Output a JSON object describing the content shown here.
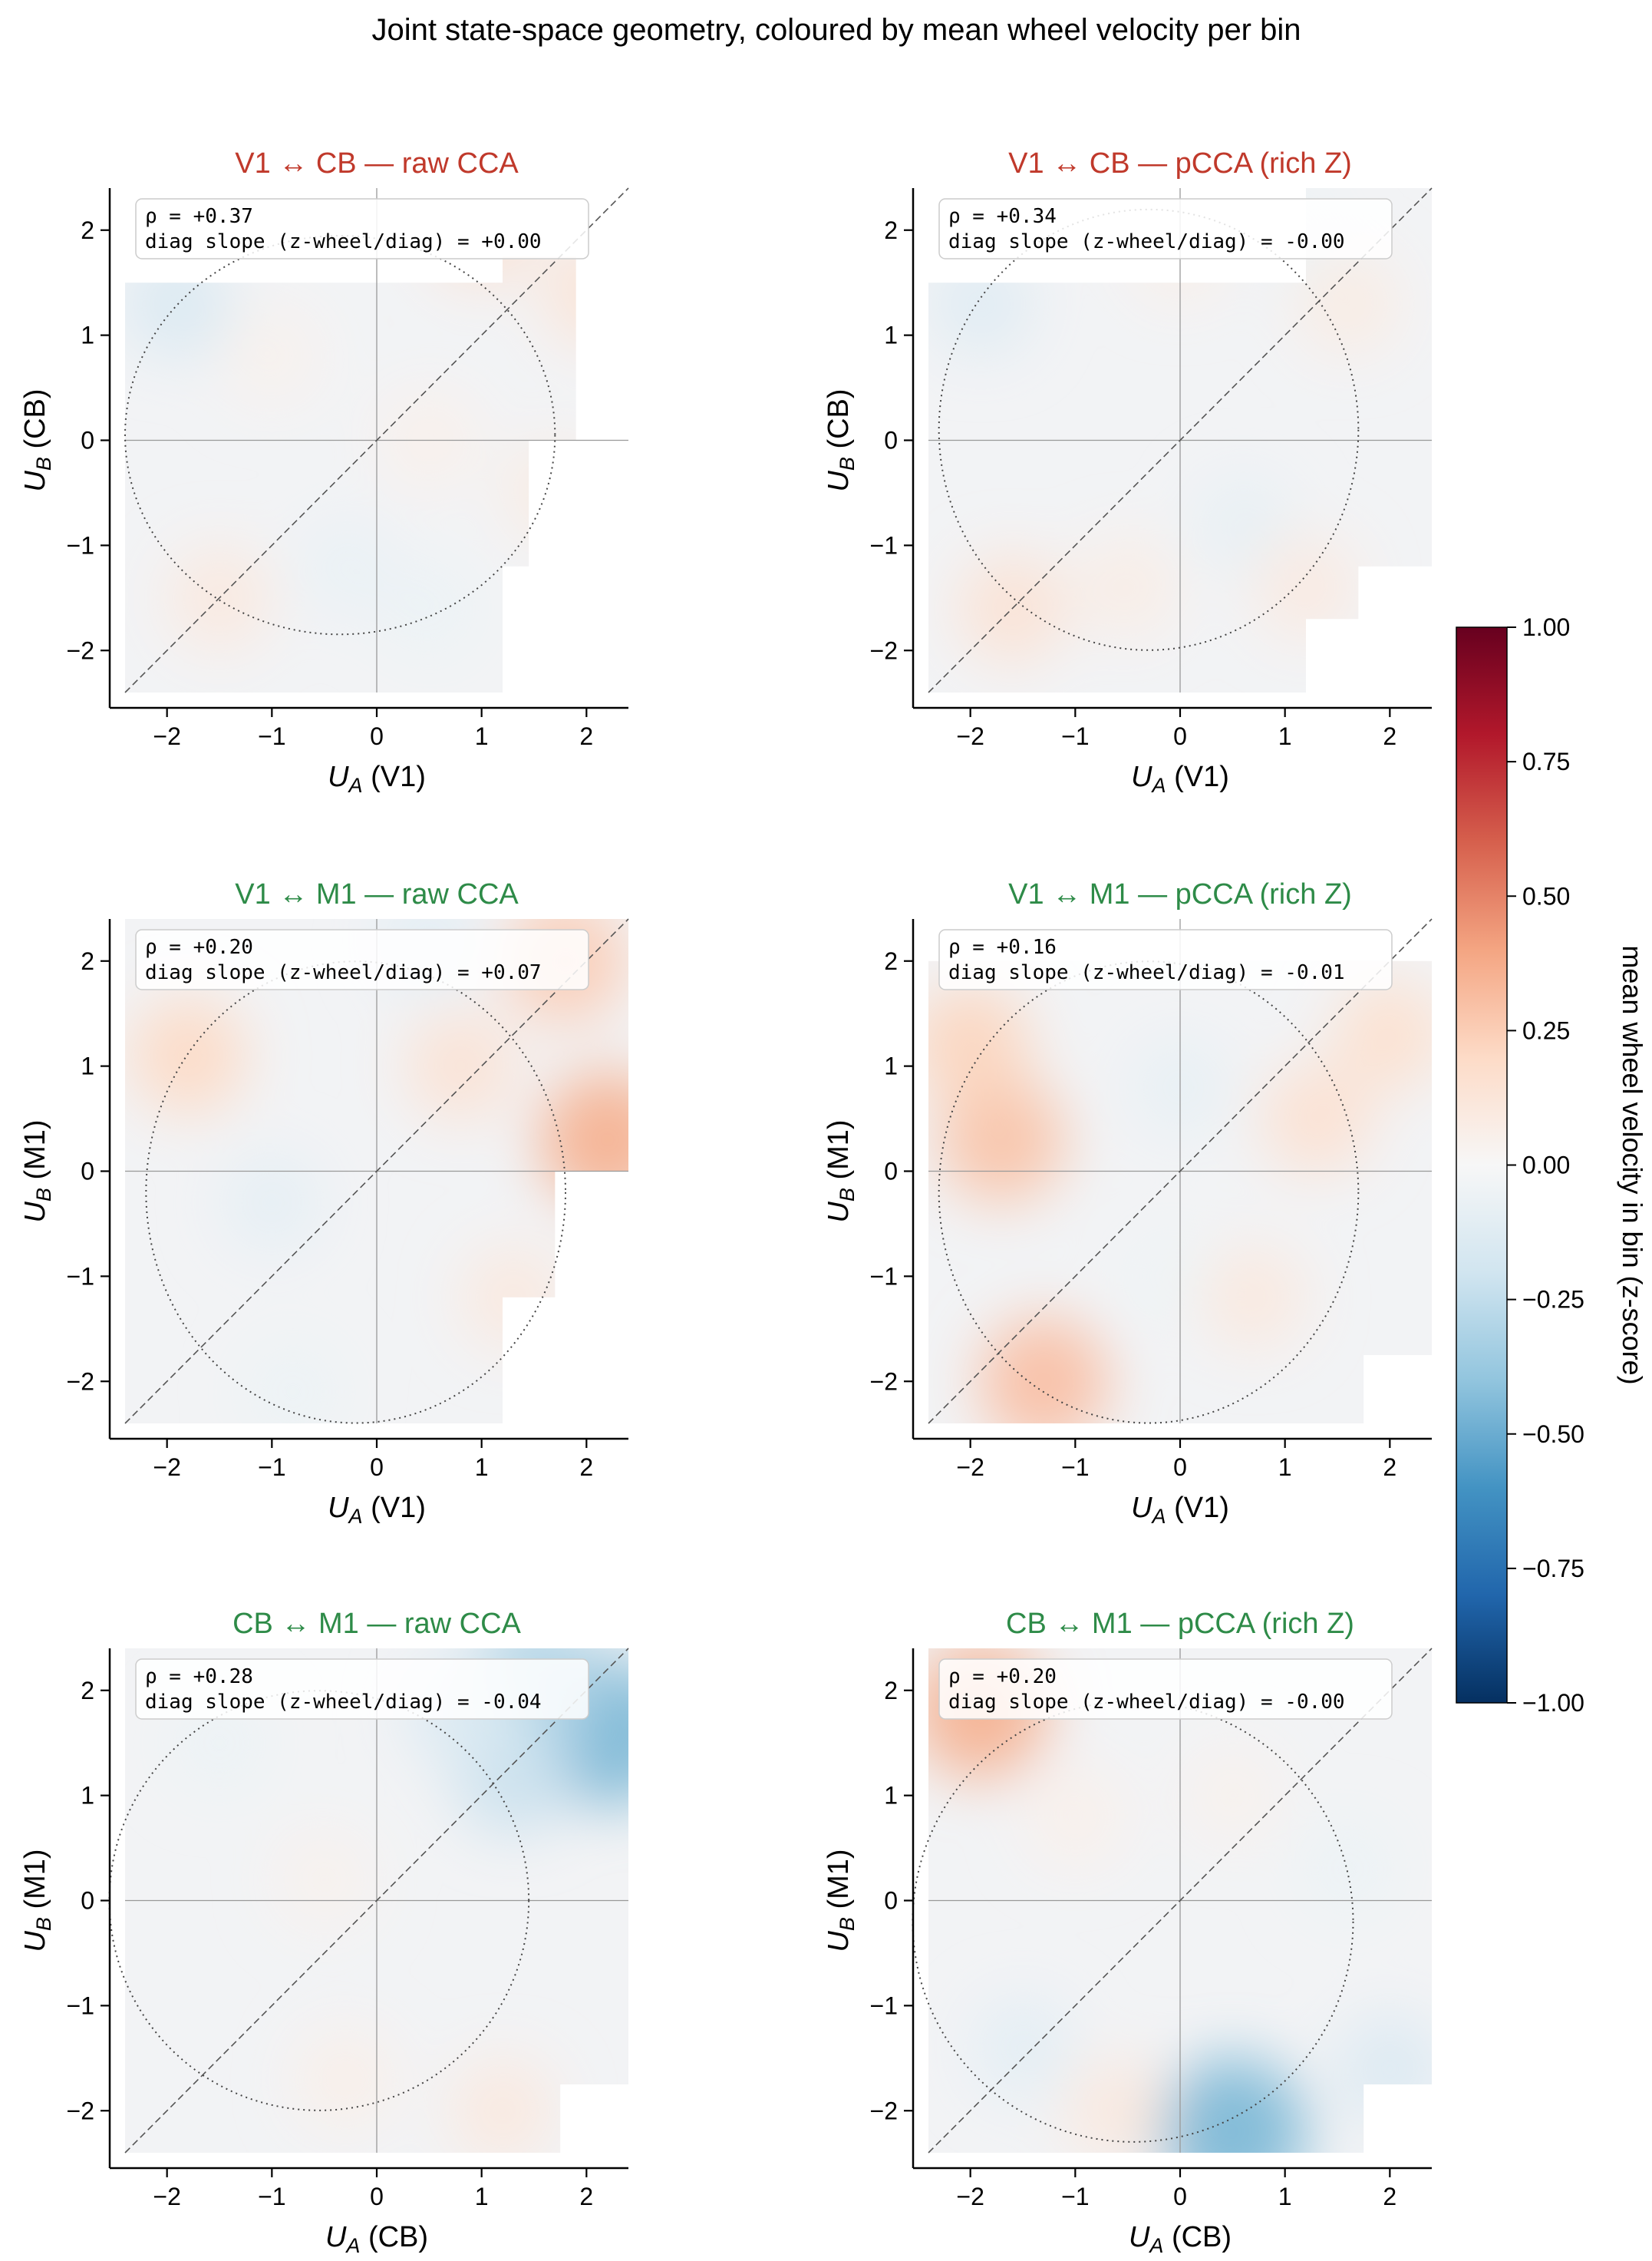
{
  "figure": {
    "title": "Joint state-space geometry, coloured by mean wheel velocity per bin"
  },
  "colorbar": {
    "label": "mean wheel velocity in bin  (z-score)",
    "ticks": [
      "1.00",
      "0.75",
      "0.50",
      "0.25",
      "0.00",
      "−0.25",
      "−0.50",
      "−0.75",
      "−1.00"
    ],
    "tick_values": [
      1.0,
      0.75,
      0.5,
      0.25,
      0.0,
      -0.25,
      -0.5,
      -0.75,
      -1.0
    ],
    "range": [
      -1.0,
      1.0
    ],
    "colormap": "RdBu_r",
    "colors": [
      "#053061",
      "#2166ac",
      "#4393c3",
      "#92c5de",
      "#d1e5f0",
      "#f7f7f7",
      "#fddbc7",
      "#f4a582",
      "#d6604d",
      "#b2182b",
      "#67001f"
    ]
  },
  "chart_data": [
    {
      "type": "heatmap",
      "title": "V1 ↔ CB — raw CCA",
      "title_color": "#c0392b",
      "xlabel": "U_A  (V1)",
      "xlabel_main": "U",
      "xlabel_sub": "A",
      "xlabel_rest": "  (V1)",
      "ylabel": "U_B  (CB)",
      "ylabel_main": "U",
      "ylabel_sub": "B",
      "ylabel_rest": "  (CB)",
      "xlim": [
        -2.4,
        2.4
      ],
      "ylim": [
        -2.4,
        2.4
      ],
      "xticks": [
        -2,
        -1,
        0,
        1,
        2
      ],
      "yticks": [
        -2,
        -1,
        0,
        1,
        2
      ],
      "xtick_labels": [
        "−2",
        "−1",
        "0",
        "1",
        "2"
      ],
      "ytick_labels": [
        "−2",
        "−1",
        "0",
        "1",
        "2"
      ],
      "annotation_line1": "ρ = +0.37",
      "annotation_line2": "diag slope (z-wheel/diag) = +0.00",
      "rho": 0.37,
      "diag_slope": 0.0,
      "ellipse": {
        "cx": -0.35,
        "cy": 0.05,
        "rx": 2.05,
        "ry": 1.9
      },
      "coverage": [
        [
          -2.4,
          -2.4,
          1.2,
          1.5
        ],
        [
          1.2,
          -1.5,
          1.2,
          0.3
        ],
        [
          1.2,
          -1.2,
          1.45,
          1.2
        ],
        [
          1.2,
          0.0,
          2.4,
          0.0
        ],
        [
          1.2,
          0.0,
          1.9,
          1.75
        ]
      ],
      "cells": [
        {
          "x": -1.9,
          "y": 1.3,
          "v": -0.15
        },
        {
          "x": 1.0,
          "y": 2.0,
          "v": 0.14
        },
        {
          "x": 2.1,
          "y": 1.4,
          "v": 0.13
        },
        {
          "x": -1.5,
          "y": -1.5,
          "v": 0.1
        },
        {
          "x": -0.3,
          "y": -1.2,
          "v": -0.07
        },
        {
          "x": 0.5,
          "y": -1.6,
          "v": -0.06
        },
        {
          "x": 0.5,
          "y": 0.0,
          "v": 0.05
        },
        {
          "x": 1.7,
          "y": -0.5,
          "v": 0.08
        },
        {
          "x": -1.0,
          "y": 0.8,
          "v": 0.04
        }
      ]
    },
    {
      "type": "heatmap",
      "title": "V1 ↔ CB — pCCA (rich Z)",
      "title_color": "#c0392b",
      "xlabel": "U_A  (V1)",
      "xlabel_main": "U",
      "xlabel_sub": "A",
      "xlabel_rest": "  (V1)",
      "ylabel": "U_B  (CB)",
      "ylabel_main": "U",
      "ylabel_sub": "B",
      "ylabel_rest": "  (CB)",
      "xlim": [
        -2.4,
        2.4
      ],
      "ylim": [
        -2.4,
        2.4
      ],
      "xticks": [
        -2,
        -1,
        0,
        1,
        2
      ],
      "yticks": [
        -2,
        -1,
        0,
        1,
        2
      ],
      "xtick_labels": [
        "−2",
        "−1",
        "0",
        "1",
        "2"
      ],
      "ytick_labels": [
        "−2",
        "−1",
        "0",
        "1",
        "2"
      ],
      "annotation_line1": "ρ = +0.34",
      "annotation_line2": "diag slope (z-wheel/diag) = -0.00",
      "rho": 0.34,
      "diag_slope": 0.0,
      "ellipse": {
        "cx": -0.3,
        "cy": 0.1,
        "rx": 2.0,
        "ry": 2.1
      },
      "coverage": [
        [
          -2.4,
          -2.4,
          1.2,
          1.5
        ],
        [
          1.2,
          -1.7,
          1.7,
          1.2
        ],
        [
          1.2,
          -1.2,
          2.4,
          0.0
        ],
        [
          1.2,
          0.0,
          2.4,
          2.4
        ]
      ],
      "cells": [
        {
          "x": -1.9,
          "y": 1.3,
          "v": -0.12
        },
        {
          "x": -1.6,
          "y": -1.6,
          "v": 0.14
        },
        {
          "x": 0.0,
          "y": 1.8,
          "v": 0.06
        },
        {
          "x": 1.0,
          "y": 2.0,
          "v": -0.06
        },
        {
          "x": 1.6,
          "y": 1.3,
          "v": 0.08
        },
        {
          "x": 0.6,
          "y": -0.8,
          "v": -0.08
        },
        {
          "x": -0.5,
          "y": -1.4,
          "v": 0.07
        },
        {
          "x": 1.2,
          "y": -1.4,
          "v": 0.09
        }
      ]
    },
    {
      "type": "heatmap",
      "title": "V1 ↔ M1 — raw CCA",
      "title_color": "#2e8b48",
      "xlabel": "U_A  (V1)",
      "xlabel_main": "U",
      "xlabel_sub": "A",
      "xlabel_rest": "  (V1)",
      "ylabel": "U_B  (M1)",
      "ylabel_main": "U",
      "ylabel_sub": "B",
      "ylabel_rest": "  (M1)",
      "xlim": [
        -2.4,
        2.4
      ],
      "ylim": [
        -2.4,
        2.4
      ],
      "xticks": [
        -2,
        -1,
        0,
        1,
        2
      ],
      "yticks": [
        -2,
        -1,
        0,
        1,
        2
      ],
      "xtick_labels": [
        "−2",
        "−1",
        "0",
        "1",
        "2"
      ],
      "ytick_labels": [
        "−2",
        "−1",
        "0",
        "1",
        "2"
      ],
      "annotation_line1": "ρ = +0.20",
      "annotation_line2": "diag slope (z-wheel/diag) = +0.07",
      "rho": 0.2,
      "diag_slope": 0.07,
      "ellipse": {
        "cx": -0.2,
        "cy": -0.2,
        "rx": 2.0,
        "ry": 2.2
      },
      "coverage": [
        [
          -2.4,
          -2.4,
          1.2,
          1.2
        ],
        [
          -2.4,
          -1.2,
          1.7,
          2.4
        ],
        [
          -2.4,
          0.0,
          2.4,
          2.4
        ]
      ],
      "cells": [
        {
          "x": 2.2,
          "y": 0.3,
          "v": 0.35
        },
        {
          "x": 1.8,
          "y": 2.0,
          "v": 0.25
        },
        {
          "x": 0.8,
          "y": 1.0,
          "v": 0.14
        },
        {
          "x": -1.8,
          "y": 1.1,
          "v": 0.2
        },
        {
          "x": -1.0,
          "y": -0.3,
          "v": -0.09
        },
        {
          "x": 0.5,
          "y": 2.2,
          "v": -0.1
        },
        {
          "x": -0.8,
          "y": -2.1,
          "v": -0.06
        },
        {
          "x": 1.3,
          "y": -1.2,
          "v": 0.1
        }
      ]
    },
    {
      "type": "heatmap",
      "title": "V1 ↔ M1 — pCCA (rich Z)",
      "title_color": "#2e8b48",
      "xlabel": "U_A  (V1)",
      "xlabel_main": "U",
      "xlabel_sub": "A",
      "xlabel_rest": "  (V1)",
      "ylabel": "U_B  (M1)",
      "ylabel_main": "U",
      "ylabel_sub": "B",
      "ylabel_rest": "  (M1)",
      "xlim": [
        -2.4,
        2.4
      ],
      "ylim": [
        -2.4,
        2.4
      ],
      "xticks": [
        -2,
        -1,
        0,
        1,
        2
      ],
      "yticks": [
        -2,
        -1,
        0,
        1,
        2
      ],
      "xtick_labels": [
        "−2",
        "−1",
        "0",
        "1",
        "2"
      ],
      "ytick_labels": [
        "−2",
        "−1",
        "0",
        "1",
        "2"
      ],
      "annotation_line1": "ρ = +0.16",
      "annotation_line2": "diag slope (z-wheel/diag) = -0.01",
      "rho": 0.16,
      "diag_slope": -0.01,
      "ellipse": {
        "cx": -0.3,
        "cy": -0.2,
        "rx": 2.0,
        "ry": 2.2
      },
      "coverage": [
        [
          -2.4,
          -2.4,
          1.75,
          1.75
        ],
        [
          -2.4,
          -1.75,
          2.4,
          2.0
        ]
      ],
      "cells": [
        {
          "x": -1.7,
          "y": 0.3,
          "v": 0.28
        },
        {
          "x": -1.3,
          "y": -2.0,
          "v": 0.3
        },
        {
          "x": -2.0,
          "y": 1.2,
          "v": 0.22
        },
        {
          "x": 1.3,
          "y": 0.5,
          "v": 0.15
        },
        {
          "x": 2.0,
          "y": 1.3,
          "v": 0.16
        },
        {
          "x": 0.0,
          "y": 0.8,
          "v": -0.08
        },
        {
          "x": -0.1,
          "y": -1.0,
          "v": -0.05
        },
        {
          "x": 0.7,
          "y": -1.2,
          "v": 0.1
        }
      ]
    },
    {
      "type": "heatmap",
      "title": "CB ↔ M1 — raw CCA",
      "title_color": "#2e8b48",
      "xlabel": "U_A  (CB)",
      "xlabel_main": "U",
      "xlabel_sub": "A",
      "xlabel_rest": "  (CB)",
      "ylabel": "U_B  (M1)",
      "ylabel_main": "U",
      "ylabel_sub": "B",
      "ylabel_rest": "  (M1)",
      "xlim": [
        -2.4,
        2.4
      ],
      "ylim": [
        -2.4,
        2.4
      ],
      "xticks": [
        -2,
        -1,
        0,
        1,
        2
      ],
      "yticks": [
        -2,
        -1,
        0,
        1,
        2
      ],
      "xtick_labels": [
        "−2",
        "−1",
        "0",
        "1",
        "2"
      ],
      "ytick_labels": [
        "−2",
        "−1",
        "0",
        "1",
        "2"
      ],
      "annotation_line1": "ρ = +0.28",
      "annotation_line2": "diag slope (z-wheel/diag) = -0.04",
      "rho": 0.28,
      "diag_slope": -0.04,
      "ellipse": {
        "cx": -0.55,
        "cy": 0.0,
        "rx": 2.0,
        "ry": 2.0
      },
      "coverage": [
        [
          -2.4,
          -2.4,
          1.75,
          1.75
        ],
        [
          1.75,
          -1.75,
          2.4,
          2.4
        ],
        [
          -2.4,
          -1.75,
          1.75,
          2.4
        ]
      ],
      "cells": [
        {
          "x": 2.2,
          "y": 1.6,
          "v": -0.45
        },
        {
          "x": 1.5,
          "y": 2.1,
          "v": -0.3
        },
        {
          "x": 1.3,
          "y": 1.2,
          "v": -0.22
        },
        {
          "x": 0.8,
          "y": 1.8,
          "v": -0.15
        },
        {
          "x": -1.5,
          "y": 1.5,
          "v": -0.06
        },
        {
          "x": -0.5,
          "y": 0.2,
          "v": 0.04
        },
        {
          "x": 1.2,
          "y": -2.0,
          "v": 0.1
        },
        {
          "x": -0.3,
          "y": -1.7,
          "v": 0.06
        }
      ]
    },
    {
      "type": "heatmap",
      "title": "CB ↔ M1 — pCCA (rich Z)",
      "title_color": "#2e8b48",
      "xlabel": "U_A  (CB)",
      "xlabel_main": "U",
      "xlabel_sub": "A",
      "xlabel_rest": "  (CB)",
      "ylabel": "U_B  (M1)",
      "ylabel_main": "U",
      "ylabel_sub": "B",
      "ylabel_rest": "  (M1)",
      "xlim": [
        -2.4,
        2.4
      ],
      "ylim": [
        -2.4,
        2.4
      ],
      "xticks": [
        -2,
        -1,
        0,
        1,
        2
      ],
      "yticks": [
        -2,
        -1,
        0,
        1,
        2
      ],
      "xtick_labels": [
        "−2",
        "−1",
        "0",
        "1",
        "2"
      ],
      "ytick_labels": [
        "−2",
        "−1",
        "0",
        "1",
        "2"
      ],
      "annotation_line1": "ρ = +0.20",
      "annotation_line2": "diag slope (z-wheel/diag) = -0.00",
      "rho": 0.2,
      "diag_slope": 0.0,
      "ellipse": {
        "cx": -0.45,
        "cy": -0.2,
        "rx": 2.1,
        "ry": 2.1
      },
      "coverage": [
        [
          -2.4,
          -2.4,
          1.75,
          2.4
        ],
        [
          -2.4,
          -1.75,
          2.4,
          2.4
        ]
      ],
      "cells": [
        {
          "x": -1.9,
          "y": 1.8,
          "v": 0.35
        },
        {
          "x": 0.5,
          "y": -2.2,
          "v": -0.45
        },
        {
          "x": 2.0,
          "y": -1.6,
          "v": -0.14
        },
        {
          "x": -1.5,
          "y": -1.4,
          "v": -0.1
        },
        {
          "x": -0.6,
          "y": -2.0,
          "v": 0.1
        },
        {
          "x": 1.6,
          "y": 0.3,
          "v": -0.06
        },
        {
          "x": -1.0,
          "y": 0.8,
          "v": 0.05
        },
        {
          "x": 0.5,
          "y": 1.0,
          "v": 0.04
        }
      ]
    }
  ]
}
